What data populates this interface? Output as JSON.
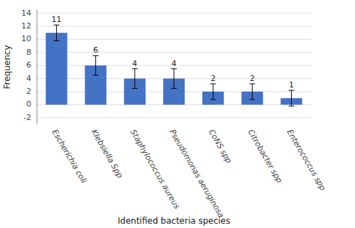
{
  "chart_data": {
    "type": "bar",
    "categories": [
      "Escherichia coli",
      "Klebsiella Spp",
      "Staphylococcus aureus",
      "Pseudomonas aeruginosa",
      "CoNS spp",
      "Citrobacter spp",
      "Enterococcus spp"
    ],
    "values": [
      11,
      6,
      4,
      4,
      2,
      2,
      1
    ],
    "errors": [
      1.2,
      1.5,
      1.5,
      1.5,
      1.2,
      1.2,
      1.2
    ],
    "color": "#4472C4",
    "xlabel": "Identified bacteria species",
    "ylabel": "Frequency",
    "ylim": [
      -3.0,
      14.5
    ],
    "yticks": [
      -2,
      0,
      2,
      4,
      6,
      8,
      10,
      12,
      14
    ],
    "grid": true,
    "data_labels": true
  }
}
